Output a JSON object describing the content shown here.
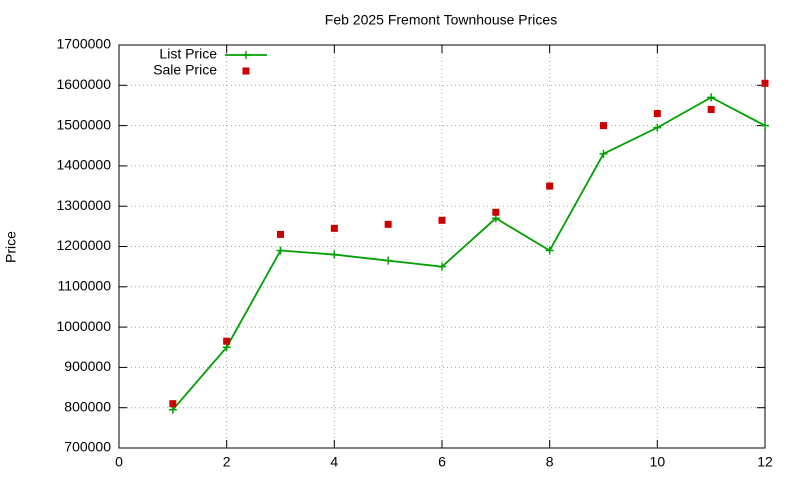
{
  "chart_data": {
    "type": "line",
    "title": "Feb 2025 Fremont Townhouse Prices",
    "y_label": "Price",
    "x": [
      1,
      2,
      3,
      4,
      5,
      6,
      7,
      8,
      9,
      10,
      11,
      12
    ],
    "series": [
      {
        "name": "List Price",
        "color": "#00a000",
        "style": "linespoints",
        "values": [
          795000,
          950000,
          1190000,
          1180000,
          1165000,
          1150000,
          1270000,
          1190000,
          1430000,
          1495000,
          1570000,
          1500000
        ]
      },
      {
        "name": "Sale Price",
        "color": "#cc0000",
        "style": "points",
        "values": [
          810000,
          965000,
          1230000,
          1245000,
          1255000,
          1265000,
          1285000,
          1350000,
          1500000,
          1530000,
          1540000,
          1605000
        ]
      }
    ],
    "xlim": [
      0,
      12
    ],
    "xticks": [
      0,
      2,
      4,
      6,
      8,
      10,
      12
    ],
    "ylim": [
      700000,
      1700000
    ],
    "yticks": [
      700000,
      800000,
      900000,
      1000000,
      1100000,
      1200000,
      1300000,
      1400000,
      1500000,
      1600000,
      1700000
    ],
    "grid": true,
    "legend": "top-left"
  }
}
